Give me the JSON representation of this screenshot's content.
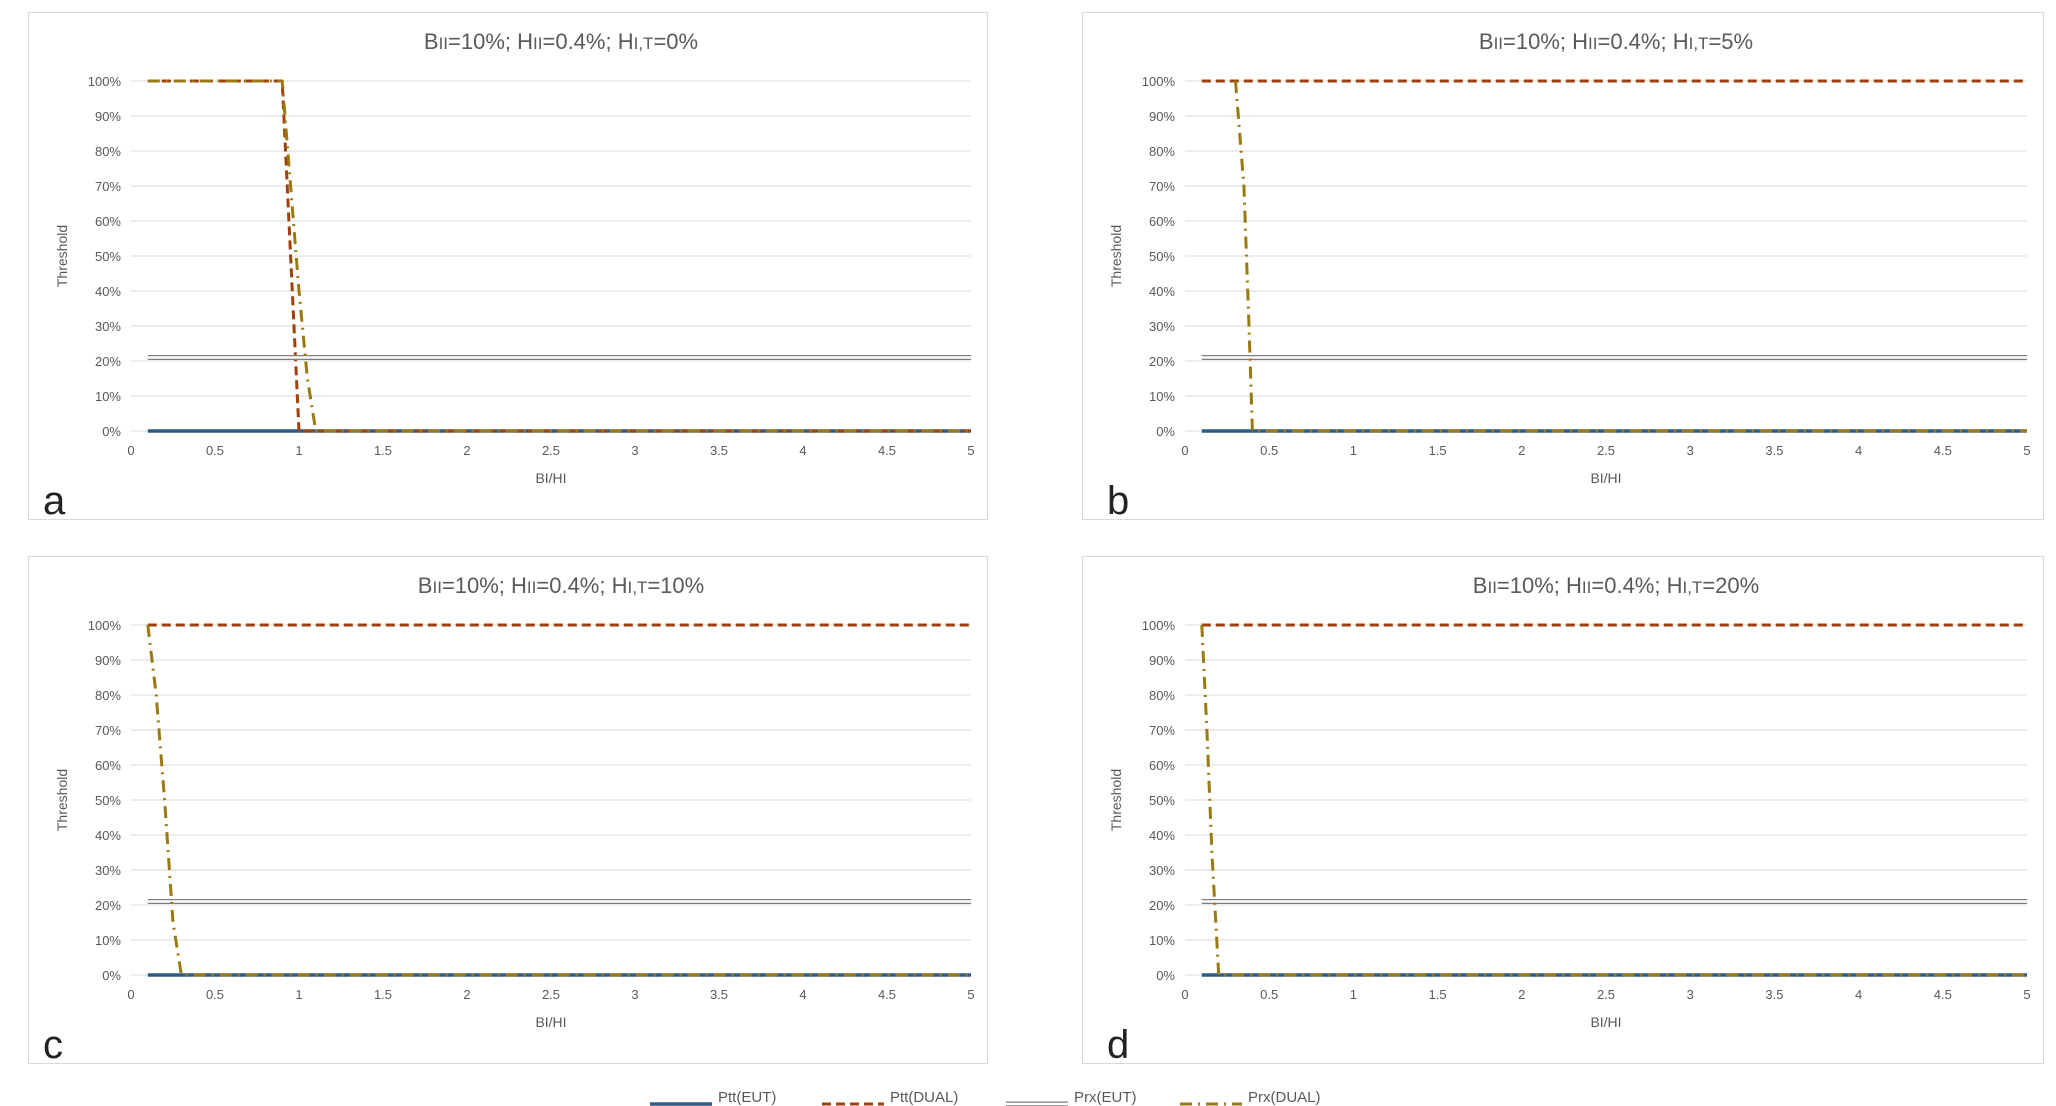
{
  "colors": {
    "ptt_eut": "#2e5a87",
    "ptt_dual": "#a0400a",
    "prx_eut": "#7f7f7f",
    "prx_dual": "#9a7a10",
    "grid": "#d9d9d9",
    "axis_text": "#595959"
  },
  "legend_labels": [
    "Ptt(EUT)",
    "Ptt(DUAL)",
    "Prx(EUT)",
    "Prx(DUAL)"
  ],
  "chart_data": [
    {
      "type": "line",
      "letter": "a",
      "title": "BII=10%; HII=0.4%; HI,T=0%",
      "xlabel": "BI/HI",
      "ylabel": "Threshold",
      "xlim": [
        0,
        5
      ],
      "ylim": [
        0,
        100
      ],
      "x_ticks": [
        "0",
        "0.5",
        "1",
        "1.5",
        "2",
        "2.5",
        "3",
        "3.5",
        "4",
        "4.5",
        "5"
      ],
      "y_ticks": [
        "0%",
        "10%",
        "20%",
        "30%",
        "40%",
        "50%",
        "60%",
        "70%",
        "80%",
        "90%",
        "100%"
      ],
      "grid": true,
      "series": [
        {
          "name": "Ptt(EUT)",
          "points": [
            [
              0.1,
              0
            ],
            [
              5,
              0
            ]
          ]
        },
        {
          "name": "Ptt(DUAL)",
          "points": [
            [
              0.1,
              100
            ],
            [
              0.9,
              100
            ],
            [
              1.0,
              0
            ],
            [
              5,
              0
            ]
          ]
        },
        {
          "name": "Prx(EUT)",
          "points": [
            [
              0.1,
              21
            ],
            [
              5,
              21
            ]
          ]
        },
        {
          "name": "Prx(DUAL)",
          "points": [
            [
              0.1,
              100
            ],
            [
              0.9,
              100
            ],
            [
              0.95,
              70
            ],
            [
              1.0,
              40
            ],
            [
              1.05,
              15
            ],
            [
              1.1,
              0
            ],
            [
              5,
              0
            ]
          ]
        }
      ]
    },
    {
      "type": "line",
      "letter": "b",
      "title": "BII=10%; HII=0.4%; HI,T=5%",
      "xlabel": "BI/HI",
      "ylabel": "Threshold",
      "xlim": [
        0,
        5
      ],
      "ylim": [
        0,
        100
      ],
      "x_ticks": [
        "0",
        "0.5",
        "1",
        "1.5",
        "2",
        "2.5",
        "3",
        "3.5",
        "4",
        "4.5",
        "5"
      ],
      "y_ticks": [
        "0%",
        "10%",
        "20%",
        "30%",
        "40%",
        "50%",
        "60%",
        "70%",
        "80%",
        "90%",
        "100%"
      ],
      "grid": true,
      "series": [
        {
          "name": "Ptt(EUT)",
          "points": [
            [
              0.1,
              0
            ],
            [
              5,
              0
            ]
          ]
        },
        {
          "name": "Ptt(DUAL)",
          "points": [
            [
              0.1,
              100
            ],
            [
              5,
              100
            ]
          ]
        },
        {
          "name": "Prx(EUT)",
          "points": [
            [
              0.1,
              21
            ],
            [
              5,
              21
            ]
          ]
        },
        {
          "name": "Prx(DUAL)",
          "points": [
            [
              0.3,
              100
            ],
            [
              0.35,
              70
            ],
            [
              0.38,
              30
            ],
            [
              0.4,
              0
            ],
            [
              5,
              0
            ]
          ]
        }
      ]
    },
    {
      "type": "line",
      "letter": "c",
      "title": "BII=10%; HII=0.4%; HI,T=10%",
      "xlabel": "BI/HI",
      "ylabel": "Threshold",
      "xlim": [
        0,
        5
      ],
      "ylim": [
        0,
        100
      ],
      "x_ticks": [
        "0",
        "0.5",
        "1",
        "1.5",
        "2",
        "2.5",
        "3",
        "3.5",
        "4",
        "4.5",
        "5"
      ],
      "y_ticks": [
        "0%",
        "10%",
        "20%",
        "30%",
        "40%",
        "50%",
        "60%",
        "70%",
        "80%",
        "90%",
        "100%"
      ],
      "grid": true,
      "series": [
        {
          "name": "Ptt(EUT)",
          "points": [
            [
              0.1,
              0
            ],
            [
              5,
              0
            ]
          ]
        },
        {
          "name": "Ptt(DUAL)",
          "points": [
            [
              0.1,
              100
            ],
            [
              5,
              100
            ]
          ]
        },
        {
          "name": "Prx(EUT)",
          "points": [
            [
              0.1,
              21
            ],
            [
              5,
              21
            ]
          ]
        },
        {
          "name": "Prx(DUAL)",
          "points": [
            [
              0.1,
              100
            ],
            [
              0.15,
              80
            ],
            [
              0.2,
              50
            ],
            [
              0.25,
              15
            ],
            [
              0.3,
              0
            ],
            [
              5,
              0
            ]
          ]
        }
      ]
    },
    {
      "type": "line",
      "letter": "d",
      "title": "BII=10%; HII=0.4%; HI,T=20%",
      "xlabel": "BI/HI",
      "ylabel": "Threshold",
      "xlim": [
        0,
        5
      ],
      "ylim": [
        0,
        100
      ],
      "x_ticks": [
        "0",
        "0.5",
        "1",
        "1.5",
        "2",
        "2.5",
        "3",
        "3.5",
        "4",
        "4.5",
        "5"
      ],
      "y_ticks": [
        "0%",
        "10%",
        "20%",
        "30%",
        "40%",
        "50%",
        "60%",
        "70%",
        "80%",
        "90%",
        "100%"
      ],
      "grid": true,
      "series": [
        {
          "name": "Ptt(EUT)",
          "points": [
            [
              0.1,
              0
            ],
            [
              5,
              0
            ]
          ]
        },
        {
          "name": "Ptt(DUAL)",
          "points": [
            [
              0.1,
              100
            ],
            [
              5,
              100
            ]
          ]
        },
        {
          "name": "Prx(EUT)",
          "points": [
            [
              0.1,
              21
            ],
            [
              5,
              21
            ]
          ]
        },
        {
          "name": "Prx(DUAL)",
          "points": [
            [
              0.1,
              100
            ],
            [
              0.13,
              70
            ],
            [
              0.16,
              35
            ],
            [
              0.2,
              0
            ],
            [
              5,
              0
            ]
          ]
        }
      ]
    }
  ]
}
